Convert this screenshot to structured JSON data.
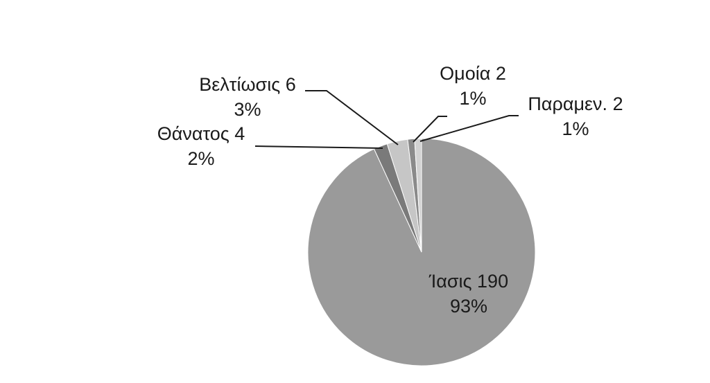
{
  "chart_data": {
    "type": "pie",
    "title": "",
    "slices": [
      {
        "name": "Ίασις",
        "value": 190,
        "percent_label": "93%",
        "color": "#9a9a9a"
      },
      {
        "name": "Θάνατος",
        "value": 4,
        "percent_label": "2%",
        "color": "#7a7a7a"
      },
      {
        "name": "Βελτίωσις",
        "value": 6,
        "percent_label": "3%",
        "color": "#c6c6c6"
      },
      {
        "name": "Ομοία",
        "value": 2,
        "percent_label": "1%",
        "color": "#8a8a8a"
      },
      {
        "name": "Παραμεν.",
        "value": 2,
        "percent_label": "1%",
        "color": "#d2d2d2"
      }
    ],
    "start_angle_deg": 0,
    "direction": "clockwise",
    "legend": "none",
    "data_labels": "category name, value and percentage",
    "slice_border_color": "#ffffff"
  }
}
